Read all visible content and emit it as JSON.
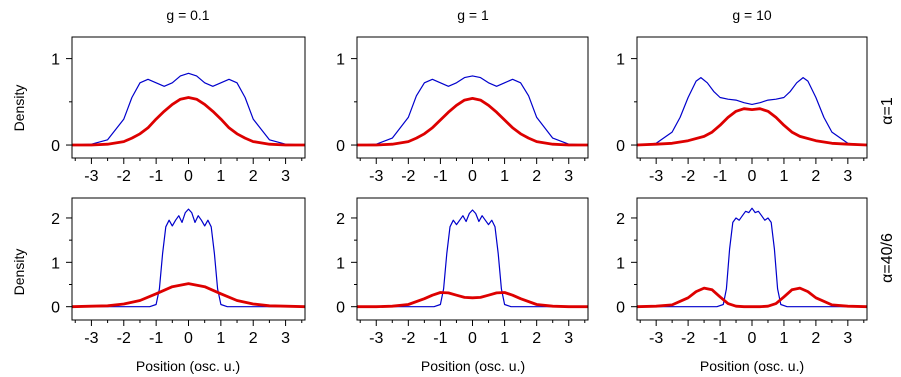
{
  "figure": {
    "xlabel": "Position (osc. u.)",
    "ylabel": "Density",
    "column_titles": [
      "g = 0.1",
      "g = 1",
      "g = 10"
    ],
    "row_labels": [
      "α=1",
      "α=40/6"
    ]
  },
  "chart_data": [
    {
      "type": "line",
      "title": "g = 0.1",
      "row_label": "α=1",
      "xlim": [
        -3.6,
        3.6
      ],
      "ylim": [
        -0.15,
        1.25
      ],
      "xticks": [
        -3,
        -2,
        -1,
        0,
        1,
        2,
        3
      ],
      "yticks": [
        0,
        1
      ],
      "series": [
        {
          "color": "#0000cc",
          "x": [
            -3.6,
            -3,
            -2.5,
            -2,
            -1.75,
            -1.5,
            -1.25,
            -1,
            -0.75,
            -0.5,
            -0.25,
            0,
            0.25,
            0.5,
            0.75,
            1,
            1.25,
            1.5,
            1.75,
            2,
            2.5,
            3,
            3.6
          ],
          "y": [
            0,
            0.01,
            0.06,
            0.3,
            0.55,
            0.72,
            0.76,
            0.72,
            0.68,
            0.72,
            0.8,
            0.83,
            0.8,
            0.72,
            0.68,
            0.72,
            0.76,
            0.72,
            0.55,
            0.3,
            0.06,
            0.01,
            0
          ]
        },
        {
          "color": "#dd0000",
          "x": [
            -3.6,
            -3,
            -2.5,
            -2,
            -1.75,
            -1.5,
            -1.25,
            -1,
            -0.75,
            -0.5,
            -0.25,
            0,
            0.25,
            0.5,
            0.75,
            1,
            1.25,
            1.5,
            1.75,
            2,
            2.5,
            3,
            3.6
          ],
          "y": [
            0,
            0,
            0.01,
            0.04,
            0.08,
            0.13,
            0.2,
            0.3,
            0.39,
            0.47,
            0.53,
            0.55,
            0.53,
            0.47,
            0.39,
            0.3,
            0.2,
            0.13,
            0.08,
            0.04,
            0.01,
            0,
            0
          ]
        }
      ]
    },
    {
      "type": "line",
      "title": "g = 1",
      "row_label": "α=1",
      "xlim": [
        -3.6,
        3.6
      ],
      "ylim": [
        -0.15,
        1.25
      ],
      "xticks": [
        -3,
        -2,
        -1,
        0,
        1,
        2,
        3
      ],
      "yticks": [
        0,
        1
      ],
      "series": [
        {
          "color": "#0000cc",
          "x": [
            -3.6,
            -3,
            -2.5,
            -2,
            -1.75,
            -1.5,
            -1.25,
            -1,
            -0.75,
            -0.5,
            -0.25,
            0,
            0.25,
            0.5,
            0.75,
            1,
            1.25,
            1.5,
            1.75,
            2,
            2.5,
            3,
            3.6
          ],
          "y": [
            0,
            0.01,
            0.08,
            0.32,
            0.57,
            0.72,
            0.76,
            0.72,
            0.68,
            0.72,
            0.78,
            0.8,
            0.78,
            0.72,
            0.68,
            0.72,
            0.76,
            0.72,
            0.57,
            0.32,
            0.08,
            0.01,
            0
          ]
        },
        {
          "color": "#dd0000",
          "x": [
            -3.6,
            -3,
            -2.5,
            -2,
            -1.75,
            -1.5,
            -1.25,
            -1,
            -0.75,
            -0.5,
            -0.25,
            0,
            0.25,
            0.5,
            0.75,
            1,
            1.25,
            1.5,
            1.75,
            2,
            2.5,
            3,
            3.6
          ],
          "y": [
            0,
            0,
            0.01,
            0.04,
            0.08,
            0.13,
            0.2,
            0.29,
            0.38,
            0.46,
            0.52,
            0.54,
            0.52,
            0.46,
            0.38,
            0.29,
            0.2,
            0.13,
            0.08,
            0.04,
            0.01,
            0,
            0
          ]
        }
      ]
    },
    {
      "type": "line",
      "title": "g = 10",
      "row_label": "α=1",
      "xlim": [
        -3.6,
        3.6
      ],
      "ylim": [
        -0.15,
        1.25
      ],
      "xticks": [
        -3,
        -2,
        -1,
        0,
        1,
        2,
        3
      ],
      "yticks": [
        0,
        1
      ],
      "series": [
        {
          "color": "#0000cc",
          "x": [
            -3.6,
            -3,
            -2.5,
            -2.25,
            -2,
            -1.75,
            -1.6,
            -1.4,
            -1.2,
            -1,
            -0.75,
            -0.5,
            -0.25,
            0,
            0.25,
            0.5,
            0.75,
            1,
            1.2,
            1.4,
            1.6,
            1.75,
            2,
            2.25,
            2.5,
            3,
            3.6
          ],
          "y": [
            0,
            0.02,
            0.15,
            0.32,
            0.55,
            0.74,
            0.78,
            0.72,
            0.62,
            0.55,
            0.53,
            0.52,
            0.49,
            0.47,
            0.49,
            0.52,
            0.53,
            0.55,
            0.62,
            0.72,
            0.78,
            0.74,
            0.55,
            0.32,
            0.15,
            0.02,
            0
          ]
        },
        {
          "color": "#dd0000",
          "x": [
            -3.6,
            -3,
            -2.5,
            -2,
            -1.5,
            -1.25,
            -1,
            -0.75,
            -0.5,
            -0.25,
            0,
            0.25,
            0.5,
            0.75,
            1,
            1.25,
            1.5,
            2,
            2.5,
            3,
            3.6
          ],
          "y": [
            0,
            0.01,
            0.02,
            0.05,
            0.1,
            0.15,
            0.23,
            0.32,
            0.39,
            0.42,
            0.41,
            0.42,
            0.39,
            0.32,
            0.23,
            0.15,
            0.1,
            0.05,
            0.02,
            0.01,
            0
          ]
        }
      ]
    },
    {
      "type": "line",
      "title": "",
      "row_label": "α=40/6",
      "xlim": [
        -3.6,
        3.6
      ],
      "ylim": [
        -0.3,
        2.45
      ],
      "xticks": [
        -3,
        -2,
        -1,
        0,
        1,
        2,
        3
      ],
      "yticks": [
        0,
        1,
        2
      ],
      "series": [
        {
          "color": "#0000cc",
          "x": [
            -3.6,
            -1.2,
            -1,
            -0.9,
            -0.8,
            -0.7,
            -0.6,
            -0.5,
            -0.4,
            -0.3,
            -0.2,
            -0.1,
            0,
            0.1,
            0.2,
            0.3,
            0.4,
            0.5,
            0.6,
            0.7,
            0.8,
            0.9,
            1,
            1.2,
            3.6
          ],
          "y": [
            0,
            0,
            0.05,
            0.4,
            1.2,
            1.8,
            1.95,
            1.82,
            1.95,
            2.05,
            1.9,
            2.12,
            2.2,
            2.12,
            1.9,
            2.05,
            1.95,
            1.82,
            1.95,
            1.8,
            1.2,
            0.4,
            0.05,
            0,
            0
          ]
        },
        {
          "color": "#dd0000",
          "x": [
            -3.6,
            -3,
            -2.5,
            -2,
            -1.5,
            -1,
            -0.5,
            0,
            0.5,
            1,
            1.5,
            2,
            2.5,
            3,
            3.6
          ],
          "y": [
            0,
            0.01,
            0.02,
            0.06,
            0.14,
            0.29,
            0.45,
            0.52,
            0.45,
            0.29,
            0.14,
            0.06,
            0.02,
            0.01,
            0
          ]
        }
      ]
    },
    {
      "type": "line",
      "title": "",
      "row_label": "α=40/6",
      "xlim": [
        -3.6,
        3.6
      ],
      "ylim": [
        -0.3,
        2.45
      ],
      "xticks": [
        -3,
        -2,
        -1,
        0,
        1,
        2,
        3
      ],
      "yticks": [
        0,
        1,
        2
      ],
      "series": [
        {
          "color": "#0000cc",
          "x": [
            -3.6,
            -1.2,
            -1,
            -0.9,
            -0.8,
            -0.7,
            -0.6,
            -0.5,
            -0.4,
            -0.3,
            -0.2,
            -0.1,
            0,
            0.1,
            0.2,
            0.3,
            0.4,
            0.5,
            0.6,
            0.7,
            0.8,
            0.9,
            1,
            1.2,
            3.6
          ],
          "y": [
            0,
            0,
            0.05,
            0.4,
            1.2,
            1.8,
            1.95,
            1.85,
            1.95,
            2.05,
            1.92,
            2.1,
            2.18,
            2.1,
            1.92,
            2.05,
            1.95,
            1.85,
            1.95,
            1.8,
            1.2,
            0.4,
            0.05,
            0,
            0
          ]
        },
        {
          "color": "#dd0000",
          "x": [
            -3.6,
            -3,
            -2.5,
            -2,
            -1.5,
            -1.25,
            -1,
            -0.75,
            -0.5,
            -0.25,
            0,
            0.25,
            0.5,
            0.75,
            1,
            1.25,
            1.5,
            2,
            2.5,
            3,
            3.6
          ],
          "y": [
            0,
            0,
            0.01,
            0.05,
            0.18,
            0.26,
            0.32,
            0.31,
            0.26,
            0.21,
            0.2,
            0.21,
            0.26,
            0.31,
            0.32,
            0.26,
            0.18,
            0.05,
            0.01,
            0,
            0
          ]
        }
      ]
    },
    {
      "type": "line",
      "title": "",
      "row_label": "α=40/6",
      "xlim": [
        -3.6,
        3.6
      ],
      "ylim": [
        -0.3,
        2.45
      ],
      "xticks": [
        -3,
        -2,
        -1,
        0,
        1,
        2,
        3
      ],
      "yticks": [
        0,
        1,
        2
      ],
      "series": [
        {
          "color": "#0000cc",
          "x": [
            -3.6,
            -1.1,
            -0.9,
            -0.8,
            -0.7,
            -0.6,
            -0.5,
            -0.4,
            -0.3,
            -0.2,
            -0.1,
            0,
            0.1,
            0.2,
            0.3,
            0.4,
            0.5,
            0.6,
            0.7,
            0.8,
            0.9,
            1.1,
            3.6
          ],
          "y": [
            0,
            0,
            0.05,
            0.4,
            1.3,
            1.9,
            2.0,
            1.95,
            2.05,
            2.15,
            2.12,
            2.22,
            2.12,
            2.15,
            2.05,
            1.95,
            2.0,
            1.9,
            1.3,
            0.4,
            0.05,
            0,
            0
          ]
        },
        {
          "color": "#dd0000",
          "x": [
            -3.6,
            -3,
            -2.5,
            -2,
            -1.75,
            -1.5,
            -1.25,
            -1,
            -0.75,
            -0.5,
            -0.25,
            0,
            0.25,
            0.5,
            0.75,
            1,
            1.25,
            1.5,
            1.75,
            2,
            2.5,
            3,
            3.6
          ],
          "y": [
            0,
            0.01,
            0.04,
            0.2,
            0.34,
            0.42,
            0.38,
            0.22,
            0.07,
            0.01,
            0,
            0,
            0,
            0.01,
            0.07,
            0.22,
            0.38,
            0.42,
            0.34,
            0.2,
            0.04,
            0.01,
            0
          ]
        }
      ]
    }
  ]
}
